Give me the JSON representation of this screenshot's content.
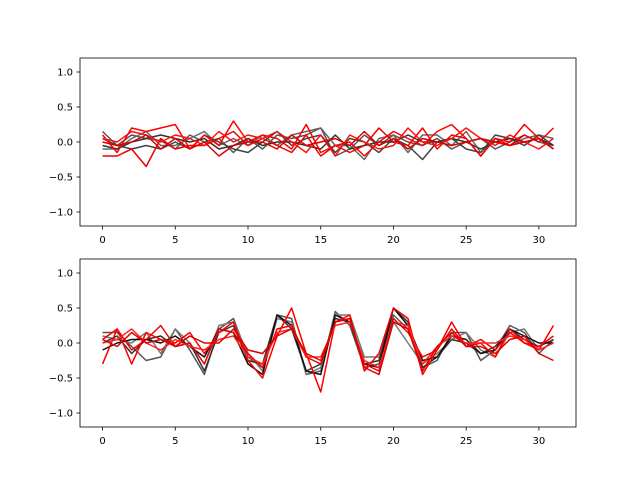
{
  "chart_data": [
    {
      "type": "line",
      "title": "",
      "xlabel": "",
      "ylabel": "",
      "xlim": [
        -1.55,
        32.55
      ],
      "ylim": [
        -1.2,
        1.2
      ],
      "xticks": [
        0,
        5,
        10,
        15,
        20,
        25,
        30
      ],
      "yticks": [
        -1.0,
        -0.5,
        0.0,
        0.5,
        1.0
      ],
      "xtick_labels": [
        "0",
        "5",
        "10",
        "15",
        "20",
        "25",
        "30"
      ],
      "ytick_labels": [
        "−1.0",
        "−0.5",
        "0.0",
        "0.5",
        "1.0"
      ],
      "grid": false,
      "x": [
        0,
        1,
        2,
        3,
        4,
        5,
        6,
        7,
        8,
        9,
        10,
        11,
        12,
        13,
        14,
        15,
        16,
        17,
        18,
        19,
        20,
        21,
        22,
        23,
        24,
        25,
        26,
        27,
        28,
        29,
        30,
        31
      ],
      "series": [
        {
          "color": "#555555",
          "values": [
            0.15,
            -0.05,
            0.1,
            0.05,
            0.02,
            -0.1,
            0.1,
            0.0,
            0.05,
            -0.15,
            0.05,
            -0.1,
            0.1,
            0.05,
            0.1,
            0.2,
            -0.2,
            -0.1,
            0.1,
            -0.05,
            0.1,
            0.0,
            -0.05,
            0.05,
            -0.1,
            0.0,
            0.05,
            -0.1,
            0.0,
            0.1,
            0.0,
            -0.05
          ]
        },
        {
          "color": "#666666",
          "values": [
            -0.1,
            -0.1,
            0.05,
            0.15,
            -0.05,
            -0.05,
            0.05,
            0.15,
            -0.05,
            0.05,
            -0.05,
            0.1,
            -0.05,
            0.1,
            0.15,
            0.2,
            -0.05,
            -0.05,
            -0.25,
            0.05,
            0.1,
            -0.15,
            0.1,
            0.1,
            -0.05,
            0.15,
            -0.15,
            0.05,
            -0.05,
            0.05,
            0.1,
            0.05
          ]
        },
        {
          "color": "#444444",
          "values": [
            0.05,
            -0.05,
            -0.1,
            -0.05,
            -0.1,
            0.0,
            -0.1,
            0.1,
            0.0,
            -0.1,
            -0.15,
            0.0,
            0.15,
            -0.05,
            0.05,
            0.1,
            -0.15,
            0.05,
            0.0,
            -0.15,
            0.05,
            -0.05,
            -0.25,
            0.0,
            0.05,
            -0.1,
            -0.15,
            0.1,
            0.05,
            -0.05,
            0.1,
            -0.05
          ]
        },
        {
          "color": "#333333",
          "values": [
            -0.05,
            -0.1,
            0.0,
            0.05,
            0.1,
            0.05,
            0.0,
            0.05,
            -0.1,
            -0.05,
            0.05,
            -0.05,
            0.0,
            0.0,
            -0.05,
            -0.1,
            0.1,
            -0.1,
            -0.05,
            0.0,
            0.0,
            0.1,
            0.0,
            0.0,
            0.05,
            0.0,
            -0.1,
            0.0,
            0.05,
            0.0,
            0.05,
            -0.05
          ]
        },
        {
          "color": "#ff0000",
          "values": [
            0.1,
            -0.15,
            0.2,
            0.15,
            0.2,
            0.25,
            -0.1,
            0.1,
            -0.05,
            0.3,
            0.0,
            0.1,
            0.05,
            -0.1,
            0.25,
            -0.15,
            -0.05,
            0.0,
            -0.2,
            0.0,
            0.15,
            0.05,
            -0.05,
            0.15,
            0.25,
            0.05,
            -0.2,
            0.05,
            0.0,
            0.25,
            0.05,
            -0.1
          ]
        },
        {
          "color": "#ee0000",
          "values": [
            -0.2,
            -0.2,
            -0.1,
            -0.35,
            0.05,
            -0.1,
            -0.05,
            -0.05,
            0.05,
            0.15,
            -0.05,
            0.05,
            -0.05,
            -0.15,
            0.1,
            -0.2,
            -0.05,
            -0.15,
            -0.05,
            0.2,
            0.0,
            -0.05,
            0.2,
            -0.1,
            0.1,
            0.05,
            -0.2,
            0.05,
            -0.05,
            0.1,
            0.0,
            0.2
          ]
        },
        {
          "color": "#ff1111",
          "values": [
            0.05,
            0.0,
            0.15,
            0.1,
            0.0,
            0.1,
            0.05,
            -0.05,
            0.15,
            0.0,
            0.1,
            0.05,
            0.15,
            0.0,
            -0.15,
            0.1,
            -0.2,
            0.1,
            0.0,
            -0.1,
            -0.05,
            0.2,
            0.0,
            -0.05,
            0.05,
            0.2,
            0.05,
            -0.05,
            0.1,
            0.0,
            -0.1,
            0.05
          ]
        },
        {
          "color": "#dd0000",
          "values": [
            0.0,
            -0.05,
            0.0,
            0.1,
            -0.1,
            0.05,
            -0.1,
            0.0,
            -0.2,
            -0.05,
            0.0,
            0.0,
            -0.1,
            0.1,
            -0.05,
            0.0,
            0.05,
            -0.05,
            0.15,
            -0.05,
            0.05,
            -0.1,
            0.05,
            0.0,
            -0.05,
            0.0,
            0.05,
            0.0,
            -0.05,
            0.0,
            0.05,
            -0.1
          ]
        }
      ]
    },
    {
      "type": "line",
      "title": "",
      "xlabel": "",
      "ylabel": "",
      "xlim": [
        -1.55,
        32.55
      ],
      "ylim": [
        -1.2,
        1.2
      ],
      "xticks": [
        0,
        5,
        10,
        15,
        20,
        25,
        30
      ],
      "yticks": [
        -1.0,
        -0.5,
        0.0,
        0.5,
        1.0
      ],
      "xtick_labels": [
        "0",
        "5",
        "10",
        "15",
        "20",
        "25",
        "30"
      ],
      "ytick_labels": [
        "−1.0",
        "−0.5",
        "0.0",
        "0.5",
        "1.0"
      ],
      "grid": false,
      "x": [
        0,
        1,
        2,
        3,
        4,
        5,
        6,
        7,
        8,
        9,
        10,
        11,
        12,
        13,
        14,
        15,
        16,
        17,
        18,
        19,
        20,
        21,
        22,
        23,
        24,
        25,
        26,
        27,
        28,
        29,
        30,
        31
      ],
      "series": [
        {
          "color": "#555555",
          "values": [
            0.15,
            0.15,
            -0.05,
            -0.25,
            -0.2,
            0.2,
            -0.1,
            -0.45,
            0.2,
            0.35,
            -0.2,
            -0.35,
            0.4,
            0.35,
            -0.45,
            -0.4,
            0.45,
            0.25,
            -0.35,
            -0.3,
            0.4,
            0.2,
            -0.35,
            -0.25,
            0.15,
            0.15,
            -0.25,
            -0.1,
            0.25,
            0.15,
            -0.15,
            0.05
          ]
        },
        {
          "color": "#777777",
          "values": [
            0.1,
            0.05,
            0.0,
            0.15,
            -0.15,
            0.2,
            0.0,
            -0.3,
            0.25,
            0.3,
            -0.15,
            -0.4,
            0.35,
            0.3,
            -0.45,
            -0.35,
            0.4,
            0.4,
            -0.2,
            -0.2,
            0.3,
            0.0,
            -0.3,
            -0.15,
            0.05,
            0.15,
            -0.1,
            -0.2,
            0.15,
            0.2,
            -0.1,
            0.0
          ]
        },
        {
          "color": "#333333",
          "values": [
            0.0,
            0.1,
            -0.15,
            0.05,
            0.1,
            -0.05,
            0.0,
            -0.4,
            0.15,
            0.25,
            -0.25,
            -0.3,
            0.4,
            0.2,
            -0.4,
            -0.3,
            0.35,
            0.3,
            -0.3,
            -0.25,
            0.5,
            0.3,
            -0.35,
            -0.2,
            0.05,
            0.0,
            -0.15,
            -0.05,
            0.2,
            0.05,
            -0.05,
            0.05
          ]
        },
        {
          "color": "#111111",
          "values": [
            -0.1,
            0.0,
            0.05,
            0.05,
            0.0,
            0.1,
            -0.05,
            -0.2,
            0.2,
            0.15,
            -0.3,
            -0.45,
            0.4,
            0.25,
            -0.4,
            -0.45,
            0.4,
            0.3,
            -0.3,
            -0.35,
            0.5,
            0.25,
            -0.25,
            -0.2,
            0.1,
            0.05,
            -0.15,
            -0.1,
            0.2,
            0.1,
            0.0,
            0.0
          ]
        },
        {
          "color": "#ff0000",
          "values": [
            0.05,
            0.2,
            -0.3,
            0.15,
            0.05,
            0.0,
            0.15,
            -0.15,
            0.15,
            0.3,
            -0.25,
            -0.5,
            0.1,
            0.5,
            -0.15,
            -0.7,
            0.3,
            0.4,
            -0.4,
            -0.15,
            0.5,
            0.35,
            -0.45,
            -0.1,
            0.3,
            -0.05,
            0.0,
            -0.2,
            0.2,
            0.0,
            -0.1,
            0.25
          ]
        },
        {
          "color": "#ee0000",
          "values": [
            -0.3,
            0.2,
            -0.1,
            0.05,
            0.25,
            -0.05,
            0.0,
            -0.3,
            0.2,
            0.15,
            -0.15,
            -0.35,
            0.2,
            0.25,
            -0.2,
            -0.3,
            0.3,
            0.35,
            -0.3,
            -0.4,
            0.35,
            0.15,
            -0.2,
            -0.1,
            0.2,
            -0.05,
            0.05,
            -0.1,
            0.15,
            0.0,
            -0.05,
            0.1
          ]
        },
        {
          "color": "#ff2222",
          "values": [
            0.0,
            0.05,
            0.2,
            0.0,
            -0.1,
            0.05,
            -0.05,
            -0.1,
            0.05,
            0.1,
            -0.2,
            -0.3,
            0.15,
            0.2,
            -0.2,
            -0.2,
            0.25,
            0.3,
            -0.25,
            -0.35,
            0.3,
            0.25,
            -0.3,
            -0.05,
            0.1,
            0.0,
            0.0,
            0.0,
            0.1,
            0.05,
            -0.1,
            0.0
          ]
        },
        {
          "color": "#dd0000",
          "values": [
            0.05,
            -0.05,
            0.15,
            0.0,
            0.05,
            -0.05,
            0.1,
            0.0,
            0.0,
            0.2,
            -0.1,
            -0.15,
            0.1,
            0.2,
            -0.15,
            -0.25,
            0.3,
            0.35,
            -0.35,
            -0.45,
            0.3,
            0.2,
            -0.4,
            -0.05,
            0.15,
            -0.05,
            -0.05,
            -0.15,
            0.05,
            0.1,
            -0.15,
            -0.25
          ]
        }
      ]
    }
  ]
}
